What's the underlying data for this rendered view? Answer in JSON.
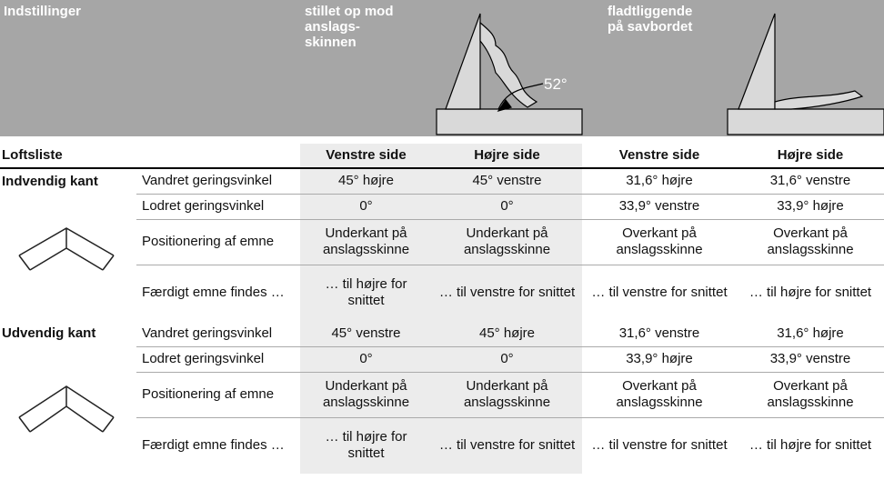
{
  "header": {
    "title": "Indstillinger",
    "group1": {
      "lines": [
        "stillet op mod",
        "anslags-",
        "skinnen"
      ],
      "angle": "52°"
    },
    "group2": {
      "lines": [
        "fladtliggende",
        "på savbordet"
      ]
    }
  },
  "table": {
    "header": {
      "label": "Loftsliste",
      "columns": [
        "Venstre side",
        "Højre side",
        "Venstre side",
        "Højre side"
      ]
    },
    "sections": [
      {
        "title": "Indvendig kant",
        "rows": [
          [
            "Vandret geringsvinkel",
            "45° højre",
            "45° venstre",
            "31,6° højre",
            "31,6° venstre"
          ],
          [
            "Lodret geringsvinkel",
            "0°",
            "0°",
            "33,9° venstre",
            "33,9° højre"
          ],
          [
            "Positionering af emne",
            "Underkant på anslagsskinne",
            "Underkant på anslagsskinne",
            "Overkant på anslagsskinne",
            "Overkant på anslagsskinne"
          ],
          [
            "Færdigt emne findes …",
            "… til højre for snittet",
            "… til venstre for snittet",
            "… til venstre for snittet",
            "… til højre for snittet"
          ]
        ]
      },
      {
        "title": "Udvendig kant",
        "rows": [
          [
            "Vandret geringsvinkel",
            "45° venstre",
            "45° højre",
            "31,6° venstre",
            "31,6° højre"
          ],
          [
            "Lodret geringsvinkel",
            "0°",
            "0°",
            "33,9° højre",
            "33,9° venstre"
          ],
          [
            "Positionering af emne",
            "Underkant på anslagsskinne",
            "Underkant på anslagsskinne",
            "Overkant på anslagsskinne",
            "Overkant på anslagsskinne"
          ],
          [
            "Færdigt emne findes …",
            "… til højre for snittet",
            "… til venstre for snittet",
            "… til venstre for snittet",
            "… til højre for snittet"
          ]
        ]
      }
    ]
  }
}
